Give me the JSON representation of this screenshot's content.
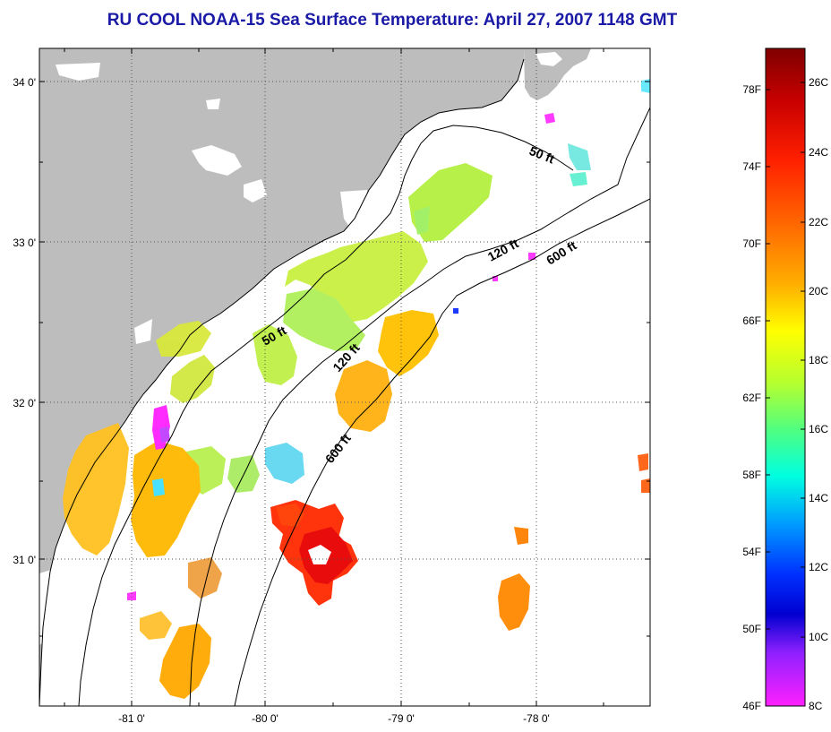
{
  "title": "RU COOL  NOAA-15  Sea Surface Temperature:  April 27, 2007 1148 GMT",
  "map": {
    "lat_labels": [
      "34 0'",
      "33 0'",
      "32 0'",
      "31 0'"
    ],
    "lon_labels": [
      "-81 0'",
      "-80 0'",
      "-79 0'",
      "-78 0'"
    ],
    "contour_labels": [
      "50 ft",
      "120 ft",
      "600 ft",
      "50 ft",
      "120 ft",
      "600 ft"
    ],
    "land_color": "#bdbdbd",
    "ocean_color": "#ffffff"
  },
  "colorbar": {
    "fahrenheit_labels": [
      "78F",
      "74F",
      "70F",
      "66F",
      "62F",
      "58F",
      "54F",
      "50F",
      "46F"
    ],
    "celsius_labels": [
      "26C",
      "24C",
      "22C",
      "20C",
      "18C",
      "16C",
      "14C",
      "12C",
      "10C",
      "8C"
    ],
    "colors": [
      "#7f0000",
      "#c80000",
      "#ff2000",
      "#ff6a00",
      "#ffb000",
      "#ffff00",
      "#b4ff30",
      "#50ff80",
      "#00ffe0",
      "#00a0ff",
      "#0030ff",
      "#0000d0",
      "#9020ff",
      "#ff20ff"
    ]
  }
}
